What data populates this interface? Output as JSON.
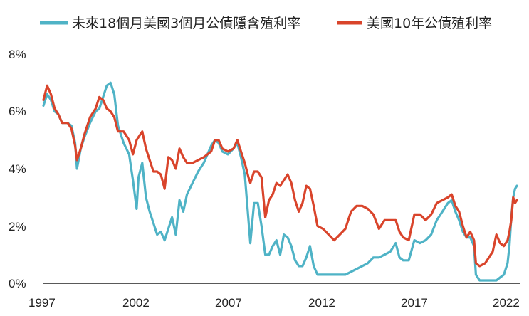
{
  "chart_data": {
    "type": "line",
    "title": "",
    "xlabel": "",
    "ylabel": "",
    "x_tick_labels": [
      "1997",
      "2002",
      "2007",
      "2012",
      "2017",
      "2022"
    ],
    "y_tick_labels": [
      "0%",
      "2%",
      "4%",
      "6%",
      "8%"
    ],
    "xlim": [
      1997.0,
      2022.4
    ],
    "ylim": [
      0,
      8
    ],
    "y_unit": "%",
    "grid": false,
    "legend_position": "top",
    "series": [
      {
        "name": "未來18個月美國3個月公債隱含殖利率",
        "color": "#4fb3c6",
        "points": [
          [
            1997.0,
            6.2
          ],
          [
            1997.2,
            6.6
          ],
          [
            1997.4,
            6.4
          ],
          [
            1997.6,
            6.0
          ],
          [
            1997.8,
            5.9
          ],
          [
            1998.0,
            5.6
          ],
          [
            1998.3,
            5.6
          ],
          [
            1998.5,
            5.5
          ],
          [
            1998.7,
            4.9
          ],
          [
            1998.8,
            4.0
          ],
          [
            1999.0,
            4.7
          ],
          [
            1999.2,
            5.1
          ],
          [
            1999.5,
            5.6
          ],
          [
            1999.8,
            6.0
          ],
          [
            2000.0,
            6.1
          ],
          [
            2000.2,
            6.5
          ],
          [
            2000.4,
            6.9
          ],
          [
            2000.6,
            7.0
          ],
          [
            2000.8,
            6.6
          ],
          [
            2001.0,
            5.5
          ],
          [
            2001.3,
            4.9
          ],
          [
            2001.6,
            4.5
          ],
          [
            2001.8,
            3.6
          ],
          [
            2002.0,
            2.6
          ],
          [
            2002.1,
            3.7
          ],
          [
            2002.3,
            4.2
          ],
          [
            2002.5,
            3.0
          ],
          [
            2002.7,
            2.5
          ],
          [
            2002.9,
            2.1
          ],
          [
            2003.1,
            1.7
          ],
          [
            2003.3,
            1.8
          ],
          [
            2003.5,
            1.5
          ],
          [
            2003.7,
            1.9
          ],
          [
            2003.9,
            2.3
          ],
          [
            2004.1,
            1.7
          ],
          [
            2004.3,
            2.9
          ],
          [
            2004.5,
            2.5
          ],
          [
            2004.7,
            3.1
          ],
          [
            2005.0,
            3.5
          ],
          [
            2005.3,
            3.9
          ],
          [
            2005.6,
            4.2
          ],
          [
            2005.8,
            4.5
          ],
          [
            2006.0,
            4.8
          ],
          [
            2006.2,
            5.0
          ],
          [
            2006.4,
            4.9
          ],
          [
            2006.6,
            4.6
          ],
          [
            2006.9,
            4.5
          ],
          [
            2007.2,
            4.7
          ],
          [
            2007.4,
            4.9
          ],
          [
            2007.6,
            4.4
          ],
          [
            2007.8,
            3.8
          ],
          [
            2008.0,
            2.2
          ],
          [
            2008.1,
            1.4
          ],
          [
            2008.3,
            2.8
          ],
          [
            2008.5,
            2.8
          ],
          [
            2008.7,
            2.0
          ],
          [
            2008.9,
            1.0
          ],
          [
            2009.1,
            1.0
          ],
          [
            2009.3,
            1.3
          ],
          [
            2009.5,
            1.5
          ],
          [
            2009.7,
            1.0
          ],
          [
            2009.9,
            1.7
          ],
          [
            2010.1,
            1.6
          ],
          [
            2010.3,
            1.3
          ],
          [
            2010.5,
            0.8
          ],
          [
            2010.7,
            0.6
          ],
          [
            2010.9,
            0.6
          ],
          [
            2011.1,
            0.9
          ],
          [
            2011.3,
            1.3
          ],
          [
            2011.5,
            0.6
          ],
          [
            2011.7,
            0.3
          ],
          [
            2012.0,
            0.3
          ],
          [
            2012.3,
            0.3
          ],
          [
            2012.6,
            0.3
          ],
          [
            2012.9,
            0.3
          ],
          [
            2013.2,
            0.3
          ],
          [
            2013.5,
            0.4
          ],
          [
            2013.8,
            0.5
          ],
          [
            2014.1,
            0.6
          ],
          [
            2014.4,
            0.7
          ],
          [
            2014.7,
            0.9
          ],
          [
            2015.0,
            0.9
          ],
          [
            2015.3,
            1.0
          ],
          [
            2015.6,
            1.1
          ],
          [
            2015.9,
            1.4
          ],
          [
            2016.1,
            0.9
          ],
          [
            2016.3,
            0.8
          ],
          [
            2016.6,
            0.8
          ],
          [
            2016.9,
            1.5
          ],
          [
            2017.2,
            1.4
          ],
          [
            2017.5,
            1.5
          ],
          [
            2017.8,
            1.7
          ],
          [
            2018.1,
            2.2
          ],
          [
            2018.4,
            2.5
          ],
          [
            2018.7,
            2.8
          ],
          [
            2018.9,
            2.9
          ],
          [
            2019.1,
            2.5
          ],
          [
            2019.3,
            2.2
          ],
          [
            2019.5,
            1.8
          ],
          [
            2019.7,
            1.6
          ],
          [
            2019.9,
            1.6
          ],
          [
            2020.1,
            1.3
          ],
          [
            2020.2,
            0.3
          ],
          [
            2020.4,
            0.1
          ],
          [
            2020.7,
            0.1
          ],
          [
            2020.9,
            0.1
          ],
          [
            2021.1,
            0.1
          ],
          [
            2021.3,
            0.1
          ],
          [
            2021.5,
            0.2
          ],
          [
            2021.7,
            0.3
          ],
          [
            2021.9,
            0.7
          ],
          [
            2022.0,
            1.3
          ],
          [
            2022.1,
            2.3
          ],
          [
            2022.2,
            3.0
          ],
          [
            2022.3,
            3.3
          ],
          [
            2022.4,
            3.4
          ]
        ]
      },
      {
        "name": "美國10年公債殖利率",
        "color": "#d9442b",
        "points": [
          [
            1997.0,
            6.4
          ],
          [
            1997.2,
            6.9
          ],
          [
            1997.4,
            6.6
          ],
          [
            1997.6,
            6.1
          ],
          [
            1997.8,
            5.9
          ],
          [
            1998.0,
            5.6
          ],
          [
            1998.3,
            5.6
          ],
          [
            1998.5,
            5.4
          ],
          [
            1998.7,
            4.8
          ],
          [
            1998.8,
            4.3
          ],
          [
            1999.0,
            4.7
          ],
          [
            1999.2,
            5.2
          ],
          [
            1999.5,
            5.8
          ],
          [
            1999.8,
            6.1
          ],
          [
            2000.0,
            6.5
          ],
          [
            2000.2,
            6.4
          ],
          [
            2000.4,
            6.1
          ],
          [
            2000.6,
            6.0
          ],
          [
            2000.8,
            5.8
          ],
          [
            2001.0,
            5.3
          ],
          [
            2001.3,
            5.3
          ],
          [
            2001.6,
            5.0
          ],
          [
            2001.8,
            4.5
          ],
          [
            2002.0,
            5.0
          ],
          [
            2002.1,
            5.1
          ],
          [
            2002.3,
            5.3
          ],
          [
            2002.5,
            4.7
          ],
          [
            2002.7,
            4.3
          ],
          [
            2002.9,
            3.9
          ],
          [
            2003.1,
            3.9
          ],
          [
            2003.3,
            3.8
          ],
          [
            2003.5,
            3.3
          ],
          [
            2003.7,
            4.4
          ],
          [
            2003.9,
            4.3
          ],
          [
            2004.1,
            4.0
          ],
          [
            2004.3,
            4.7
          ],
          [
            2004.5,
            4.4
          ],
          [
            2004.7,
            4.2
          ],
          [
            2005.0,
            4.2
          ],
          [
            2005.3,
            4.3
          ],
          [
            2005.6,
            4.4
          ],
          [
            2005.8,
            4.5
          ],
          [
            2006.0,
            4.6
          ],
          [
            2006.2,
            5.0
          ],
          [
            2006.4,
            5.0
          ],
          [
            2006.6,
            4.7
          ],
          [
            2006.9,
            4.6
          ],
          [
            2007.2,
            4.7
          ],
          [
            2007.4,
            5.0
          ],
          [
            2007.6,
            4.6
          ],
          [
            2007.8,
            4.2
          ],
          [
            2008.0,
            3.7
          ],
          [
            2008.1,
            3.5
          ],
          [
            2008.3,
            3.9
          ],
          [
            2008.5,
            3.9
          ],
          [
            2008.7,
            3.7
          ],
          [
            2008.9,
            2.3
          ],
          [
            2009.1,
            2.9
          ],
          [
            2009.3,
            3.1
          ],
          [
            2009.5,
            3.5
          ],
          [
            2009.7,
            3.4
          ],
          [
            2009.9,
            3.6
          ],
          [
            2010.1,
            3.8
          ],
          [
            2010.3,
            3.5
          ],
          [
            2010.5,
            2.9
          ],
          [
            2010.7,
            2.5
          ],
          [
            2010.9,
            2.8
          ],
          [
            2011.1,
            3.4
          ],
          [
            2011.3,
            3.3
          ],
          [
            2011.5,
            2.7
          ],
          [
            2011.7,
            2.0
          ],
          [
            2012.0,
            1.9
          ],
          [
            2012.3,
            1.7
          ],
          [
            2012.6,
            1.5
          ],
          [
            2012.9,
            1.7
          ],
          [
            2013.2,
            1.9
          ],
          [
            2013.5,
            2.5
          ],
          [
            2013.8,
            2.7
          ],
          [
            2014.1,
            2.7
          ],
          [
            2014.4,
            2.6
          ],
          [
            2014.7,
            2.4
          ],
          [
            2015.0,
            1.9
          ],
          [
            2015.3,
            2.2
          ],
          [
            2015.6,
            2.2
          ],
          [
            2015.9,
            2.2
          ],
          [
            2016.1,
            1.8
          ],
          [
            2016.3,
            1.6
          ],
          [
            2016.6,
            1.5
          ],
          [
            2016.9,
            2.4
          ],
          [
            2017.2,
            2.4
          ],
          [
            2017.5,
            2.2
          ],
          [
            2017.8,
            2.4
          ],
          [
            2018.1,
            2.8
          ],
          [
            2018.4,
            2.9
          ],
          [
            2018.7,
            3.0
          ],
          [
            2018.9,
            3.1
          ],
          [
            2019.1,
            2.7
          ],
          [
            2019.3,
            2.5
          ],
          [
            2019.5,
            2.0
          ],
          [
            2019.7,
            1.6
          ],
          [
            2019.9,
            1.8
          ],
          [
            2020.1,
            1.5
          ],
          [
            2020.2,
            0.7
          ],
          [
            2020.4,
            0.6
          ],
          [
            2020.7,
            0.7
          ],
          [
            2020.9,
            0.9
          ],
          [
            2021.1,
            1.1
          ],
          [
            2021.3,
            1.7
          ],
          [
            2021.5,
            1.4
          ],
          [
            2021.7,
            1.3
          ],
          [
            2021.9,
            1.5
          ],
          [
            2022.0,
            1.8
          ],
          [
            2022.1,
            2.2
          ],
          [
            2022.2,
            3.0
          ],
          [
            2022.3,
            2.8
          ],
          [
            2022.4,
            2.9
          ]
        ]
      }
    ]
  }
}
